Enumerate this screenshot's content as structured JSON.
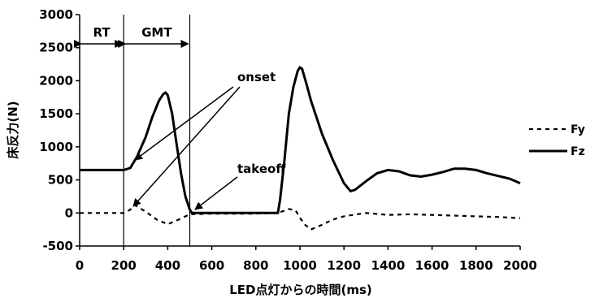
{
  "chart_data": {
    "type": "line",
    "xlabel": "LED点灯からの時間(ms)",
    "ylabel": "床反力(N)",
    "xlim": [
      0,
      2000
    ],
    "ylim": [
      -500,
      3000
    ],
    "xticks": [
      "0",
      "200",
      "400",
      "600",
      "800",
      "1000",
      "1200",
      "1400",
      "1600",
      "1800",
      "2000"
    ],
    "yticks": [
      "3000",
      "2500",
      "2000",
      "1500",
      "1000",
      "500",
      "0",
      "-500"
    ],
    "grid": false,
    "legend_position": "right",
    "series": [
      {
        "name": "Fy",
        "style": "dashed",
        "x": [
          0,
          100,
          200,
          230,
          250,
          300,
          350,
          400,
          450,
          500,
          550,
          600,
          700,
          800,
          900,
          950,
          980,
          1000,
          1020,
          1050,
          1100,
          1150,
          1200,
          1300,
          1400,
          1500,
          1600,
          1700,
          1800,
          1900,
          2000
        ],
        "y": [
          0,
          0,
          0,
          50,
          120,
          20,
          -100,
          -170,
          -100,
          -20,
          -15,
          -10,
          -10,
          -10,
          0,
          60,
          40,
          -70,
          -170,
          -250,
          -180,
          -100,
          -50,
          0,
          -30,
          -20,
          -30,
          -40,
          -50,
          -60,
          -80
        ]
      },
      {
        "name": "Fz",
        "style": "solid",
        "x": [
          0,
          100,
          200,
          230,
          260,
          300,
          330,
          360,
          380,
          390,
          400,
          420,
          440,
          460,
          480,
          500,
          510,
          550,
          600,
          700,
          800,
          850,
          900,
          910,
          930,
          950,
          970,
          990,
          1000,
          1010,
          1030,
          1050,
          1080,
          1100,
          1150,
          1200,
          1230,
          1250,
          1300,
          1350,
          1400,
          1450,
          1500,
          1550,
          1600,
          1650,
          1700,
          1750,
          1800,
          1850,
          1900,
          1950,
          2000
        ],
        "y": [
          650,
          650,
          650,
          680,
          850,
          1150,
          1450,
          1700,
          1800,
          1820,
          1780,
          1500,
          1050,
          600,
          250,
          50,
          0,
          0,
          0,
          0,
          0,
          0,
          0,
          200,
          800,
          1500,
          1900,
          2150,
          2200,
          2180,
          1950,
          1700,
          1400,
          1200,
          800,
          450,
          330,
          350,
          480,
          600,
          650,
          630,
          570,
          550,
          580,
          620,
          670,
          670,
          650,
          600,
          560,
          520,
          450
        ]
      }
    ],
    "annotations": {
      "rt": "RT",
      "gmt": "GMT",
      "onset": "onset",
      "takeoff": "takeoff"
    },
    "markers_ms": {
      "onset": 200,
      "takeoff": 500
    }
  }
}
